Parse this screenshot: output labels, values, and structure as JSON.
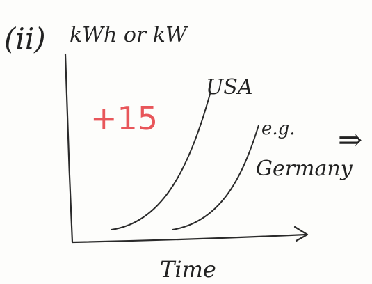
{
  "diagram": {
    "part_label": "(ii)",
    "y_axis_label": "kWh or kW",
    "x_axis_label": "Time",
    "curve_usa_label": "USA",
    "curve_germany_label_1": "e.g.",
    "curve_germany_label_2": "Germany",
    "implies_symbol": "⇒",
    "score_mark": "+15",
    "colors": {
      "ink": "#2a2a2a",
      "grader_red": "#e8565a"
    }
  }
}
